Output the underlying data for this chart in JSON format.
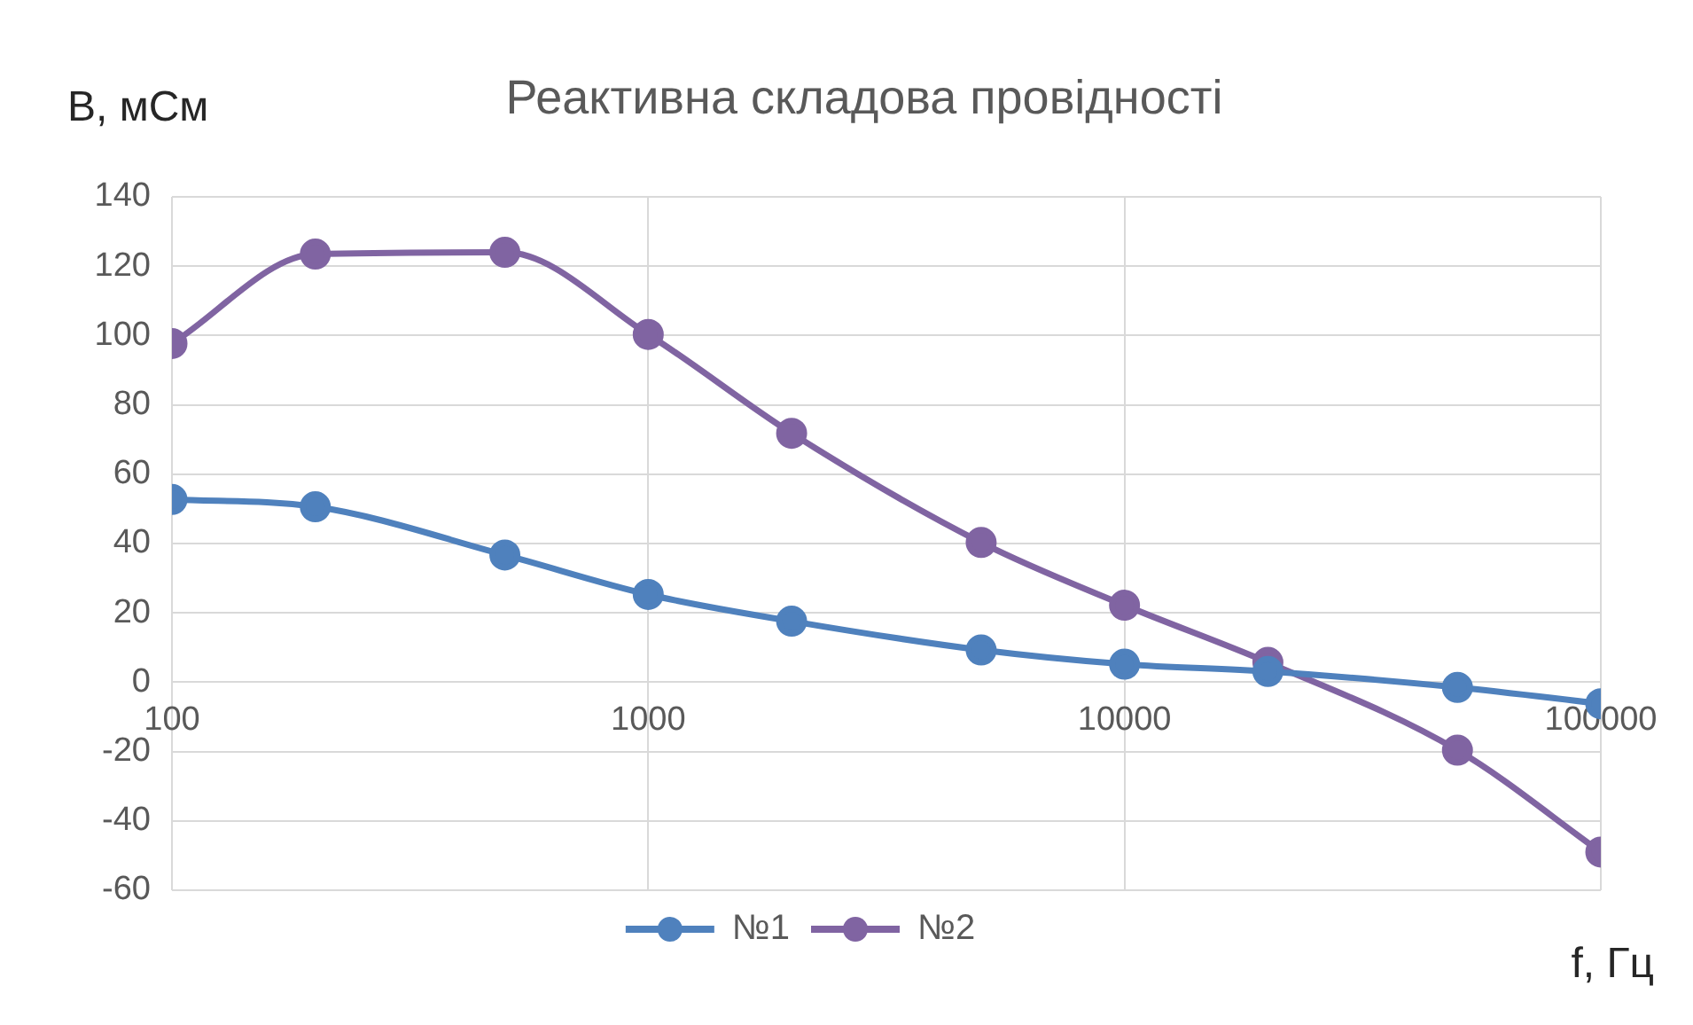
{
  "chart_data": {
    "type": "line",
    "title": "Реактивна складова провідності",
    "xlabel": "f, Гц",
    "ylabel": "B, мСм",
    "x": [
      100,
      200,
      500,
      1000,
      2000,
      5000,
      10000,
      20000,
      50000,
      100000
    ],
    "series": [
      {
        "name": "№1",
        "color": "#4f81bd",
        "values": [
          52.7,
          50.6,
          36.7,
          25.3,
          17.6,
          9.3,
          5.2,
          3.1,
          -1.5,
          -6.2
        ]
      },
      {
        "name": "№2",
        "color": "#8064a2",
        "values": [
          97.7,
          123.5,
          124,
          100.3,
          71.8,
          40.3,
          22.2,
          5.7,
          -19.6,
          -49
        ]
      }
    ],
    "log": "x",
    "xlim": [
      100,
      100000
    ],
    "xticks": [
      100,
      1000,
      10000,
      100000
    ],
    "ylim": [
      -60,
      140
    ],
    "yticks": [
      -60,
      -40,
      -20,
      0,
      20,
      40,
      60,
      80,
      100,
      120,
      140
    ],
    "grid": true,
    "legend": "bottom",
    "marker": "circle",
    "line_style": "solid"
  }
}
